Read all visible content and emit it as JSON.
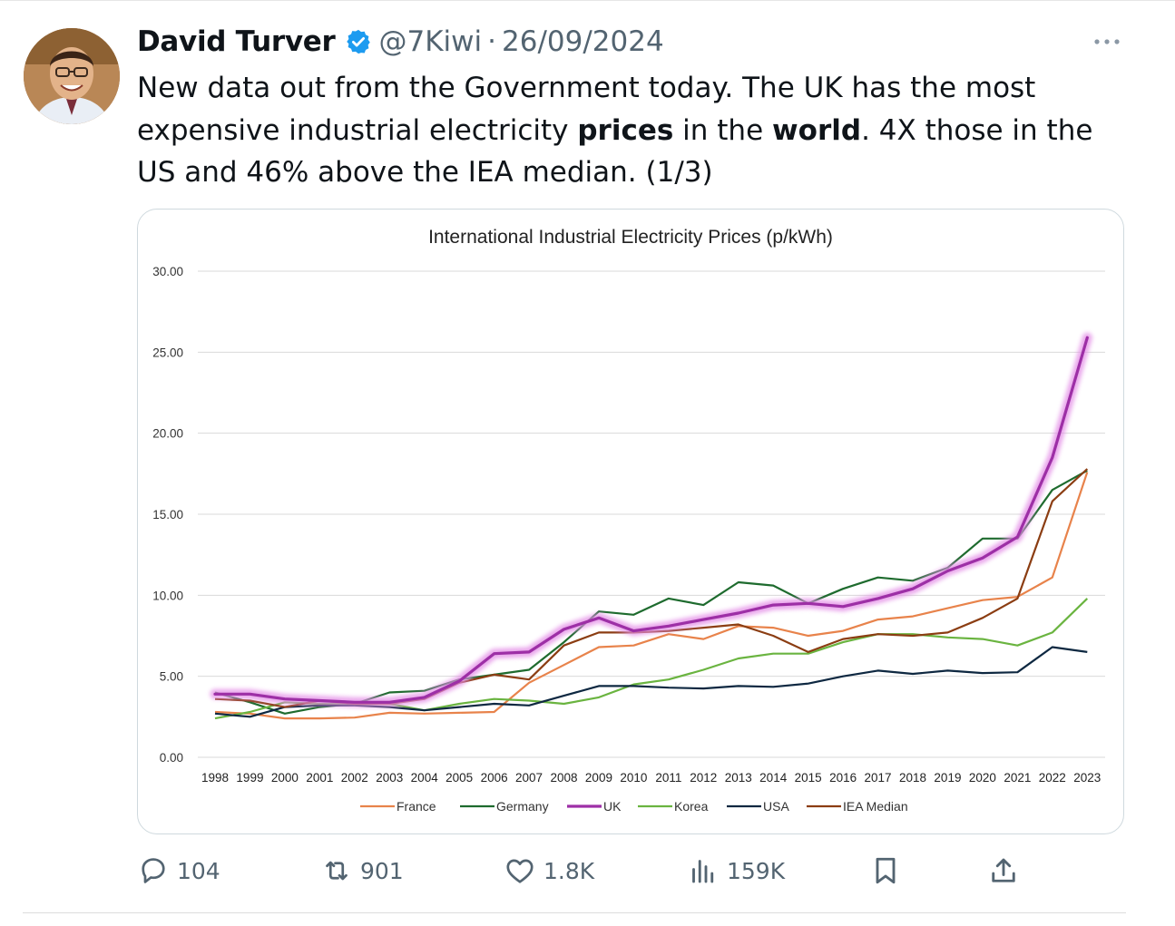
{
  "tweet": {
    "author_name": "David Turver",
    "handle": "@7Kiwi",
    "separator": "·",
    "date": "26/09/2024",
    "verified": true,
    "text_segments": [
      {
        "text": "New data out from the Government today. The UK has the most expensive industrial electricity ",
        "bold": false
      },
      {
        "text": "prices",
        "bold": true
      },
      {
        "text": " in the ",
        "bold": false
      },
      {
        "text": "world",
        "bold": true
      },
      {
        "text": ". 4X those in the US and 46% above the IEA median. (1/3)",
        "bold": false
      }
    ],
    "icons": {
      "verified": "verified-badge-icon",
      "more": "more-options-icon"
    }
  },
  "actions": {
    "replies": {
      "count": "104",
      "icon": "reply-icon"
    },
    "reposts": {
      "count": "901",
      "icon": "repost-icon"
    },
    "likes": {
      "count": "1.8K",
      "icon": "like-icon"
    },
    "views": {
      "count": "159K",
      "icon": "views-icon"
    },
    "bookmark": {
      "icon": "bookmark-icon"
    },
    "share": {
      "icon": "share-icon"
    }
  },
  "colors": {
    "verified": "#1d9bf0",
    "muted_text": "#536471",
    "text": "#0f1419"
  },
  "chart_data": {
    "type": "line",
    "title": "International Industrial Electricity Prices (p/kWh)",
    "xlabel": "",
    "ylabel": "",
    "ylim": [
      0,
      30
    ],
    "yticks": [
      "0.00",
      "5.00",
      "10.00",
      "15.00",
      "20.00",
      "25.00",
      "30.00"
    ],
    "grid": true,
    "legend_position": "bottom",
    "categories": [
      "1998",
      "1999",
      "2000",
      "2001",
      "2002",
      "2003",
      "2004",
      "2005",
      "2006",
      "2007",
      "2008",
      "2009",
      "2010",
      "2011",
      "2012",
      "2013",
      "2014",
      "2015",
      "2016",
      "2017",
      "2018",
      "2019",
      "2020",
      "2021",
      "2022",
      "2023"
    ],
    "series": [
      {
        "name": "France",
        "color": "#e8834b",
        "highlight": false,
        "values": [
          2.8,
          2.7,
          2.4,
          2.4,
          2.45,
          2.75,
          2.7,
          2.75,
          2.8,
          4.6,
          5.7,
          6.8,
          6.9,
          7.6,
          7.3,
          8.1,
          8.0,
          7.5,
          7.8,
          8.5,
          8.7,
          9.2,
          9.7,
          9.9,
          11.1,
          17.6
        ]
      },
      {
        "name": "Germany",
        "color": "#1e6b2e",
        "highlight": false,
        "values": [
          4.0,
          3.4,
          2.7,
          3.1,
          3.3,
          4.0,
          4.1,
          4.8,
          5.1,
          5.4,
          7.1,
          9.0,
          8.8,
          9.8,
          9.4,
          10.8,
          10.6,
          9.5,
          10.4,
          11.1,
          10.9,
          11.7,
          13.5,
          13.5,
          16.5,
          17.7
        ]
      },
      {
        "name": "UK",
        "color": "#9d2fa6",
        "highlight": true,
        "values": [
          3.9,
          3.9,
          3.6,
          3.5,
          3.4,
          3.4,
          3.7,
          4.7,
          6.4,
          6.5,
          7.9,
          8.6,
          7.8,
          8.1,
          8.5,
          8.9,
          9.4,
          9.5,
          9.3,
          9.8,
          10.4,
          11.5,
          12.3,
          13.6,
          18.5,
          25.9
        ]
      },
      {
        "name": "Korea",
        "color": "#6ab440",
        "highlight": false,
        "values": [
          2.4,
          2.8,
          3.4,
          3.3,
          3.3,
          3.3,
          2.9,
          3.3,
          3.6,
          3.5,
          3.3,
          3.7,
          4.5,
          4.8,
          5.4,
          6.1,
          6.4,
          6.4,
          7.1,
          7.6,
          7.6,
          7.4,
          7.3,
          6.9,
          7.7,
          9.8
        ]
      },
      {
        "name": "USA",
        "color": "#0e2841",
        "highlight": false,
        "values": [
          2.7,
          2.5,
          3.1,
          3.2,
          3.2,
          3.1,
          2.9,
          3.1,
          3.3,
          3.2,
          3.8,
          4.4,
          4.4,
          4.3,
          4.25,
          4.4,
          4.35,
          4.55,
          5.0,
          5.35,
          5.15,
          5.35,
          5.2,
          5.25,
          6.8,
          6.5
        ]
      },
      {
        "name": "IEA Median",
        "color": "#8b3d12",
        "highlight": false,
        "values": [
          3.6,
          3.5,
          3.1,
          3.5,
          3.3,
          3.3,
          3.6,
          4.6,
          5.1,
          4.8,
          6.9,
          7.7,
          7.7,
          7.8,
          8.0,
          8.2,
          7.5,
          6.5,
          7.3,
          7.6,
          7.5,
          7.7,
          8.6,
          9.8,
          15.8,
          17.8
        ]
      }
    ]
  }
}
